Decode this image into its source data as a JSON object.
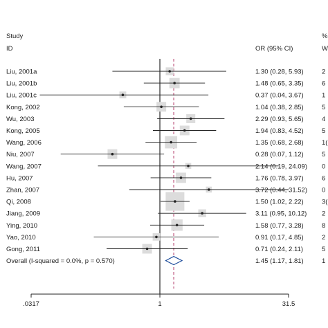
{
  "chart_data": {
    "type": "forest",
    "header": {
      "study_line1": "Study",
      "study_line2": "ID",
      "or_label": "OR (95% CI)",
      "weight_line1": "%",
      "weight_line2": "W"
    },
    "x_scale": "log",
    "xlim": [
      0.0317,
      31.5
    ],
    "x_ticks": [
      {
        "value": 0.0317,
        "label": ".0317"
      },
      {
        "value": 1,
        "label": "1"
      },
      {
        "value": 31.5,
        "label": "31.5"
      }
    ],
    "null_line": 1,
    "overall_line": 1.45,
    "studies": [
      {
        "id": "Liu, 2001a",
        "or": 1.3,
        "lo": 0.28,
        "hi": 5.93,
        "ci_text": "1.30 (0.28, 5.93)",
        "weight_text": "2",
        "weight": 2.5
      },
      {
        "id": "Liu, 2001b",
        "or": 1.48,
        "lo": 0.65,
        "hi": 3.35,
        "ci_text": "1.48 (0.65, 3.35)",
        "weight_text": "6",
        "weight": 6
      },
      {
        "id": "Liu, 2001c",
        "or": 0.37,
        "lo": 0.04,
        "hi": 3.67,
        "ci_text": "0.37 (0.04, 3.67)",
        "weight_text": "1",
        "weight": 1.5
      },
      {
        "id": "Kong, 2002",
        "or": 1.04,
        "lo": 0.38,
        "hi": 2.85,
        "ci_text": "1.04 (0.38, 2.85)",
        "weight_text": "5",
        "weight": 5
      },
      {
        "id": "Wu, 2003",
        "or": 2.29,
        "lo": 0.93,
        "hi": 5.65,
        "ci_text": "2.29 (0.93, 5.65)",
        "weight_text": "4",
        "weight": 4
      },
      {
        "id": "Kong, 2005",
        "or": 1.94,
        "lo": 0.83,
        "hi": 4.52,
        "ci_text": "1.94 (0.83, 4.52)",
        "weight_text": "5",
        "weight": 5
      },
      {
        "id": "Wang, 2006",
        "or": 1.35,
        "lo": 0.68,
        "hi": 2.68,
        "ci_text": "1.35 (0.68, 2.68)",
        "weight_text": "1(",
        "weight": 10
      },
      {
        "id": "Niu, 2007",
        "or": 0.28,
        "lo": 0.07,
        "hi": 1.12,
        "ci_text": "0.28 (0.07, 1.12)",
        "weight_text": "5",
        "weight": 5
      },
      {
        "id": "Wang, 2007",
        "or": 2.14,
        "lo": 0.19,
        "hi": 24.09,
        "ci_text": "2.14 (0.19, 24.09)",
        "weight_text": "0",
        "weight": 0.8
      },
      {
        "id": "Hu, 2007",
        "or": 1.76,
        "lo": 0.78,
        "hi": 3.97,
        "ci_text": "1.76 (0.78, 3.97)",
        "weight_text": "6",
        "weight": 6
      },
      {
        "id": "Zhan, 2007",
        "or": 3.72,
        "lo": 0.44,
        "hi": 31.52,
        "ci_text": "3.72 (0.44, 31.52)",
        "weight_text": "0",
        "weight": 0.8
      },
      {
        "id": "Qi, 2008",
        "or": 1.5,
        "lo": 1.02,
        "hi": 2.22,
        "ci_text": "1.50 (1.02, 2.22)",
        "weight_text": "3(",
        "weight": 30
      },
      {
        "id": "Jiang, 2009",
        "or": 3.11,
        "lo": 0.95,
        "hi": 10.12,
        "ci_text": "3.11 (0.95, 10.12)",
        "weight_text": "2",
        "weight": 2.5
      },
      {
        "id": "Ying, 2010",
        "or": 1.58,
        "lo": 0.77,
        "hi": 3.28,
        "ci_text": "1.58 (0.77, 3.28)",
        "weight_text": "8",
        "weight": 8
      },
      {
        "id": "Yao, 2010",
        "or": 0.91,
        "lo": 0.17,
        "hi": 4.85,
        "ci_text": "0.91 (0.17, 4.85)",
        "weight_text": "2",
        "weight": 2
      },
      {
        "id": "Gong, 2011",
        "or": 0.71,
        "lo": 0.24,
        "hi": 2.11,
        "ci_text": "0.71 (0.24, 2.11)",
        "weight_text": "5",
        "weight": 5
      }
    ],
    "overall": {
      "label": "Overall  (I-squared = 0.0%, p = 0.570)",
      "or": 1.45,
      "lo": 1.17,
      "hi": 1.81,
      "ci_text": "1.45 (1.17, 1.81)",
      "weight_text": "1"
    },
    "colors": {
      "ink": "#222222",
      "box": "#dcdcdc",
      "overall_line": "#b03060",
      "diamond": "#1f4e9c"
    }
  }
}
